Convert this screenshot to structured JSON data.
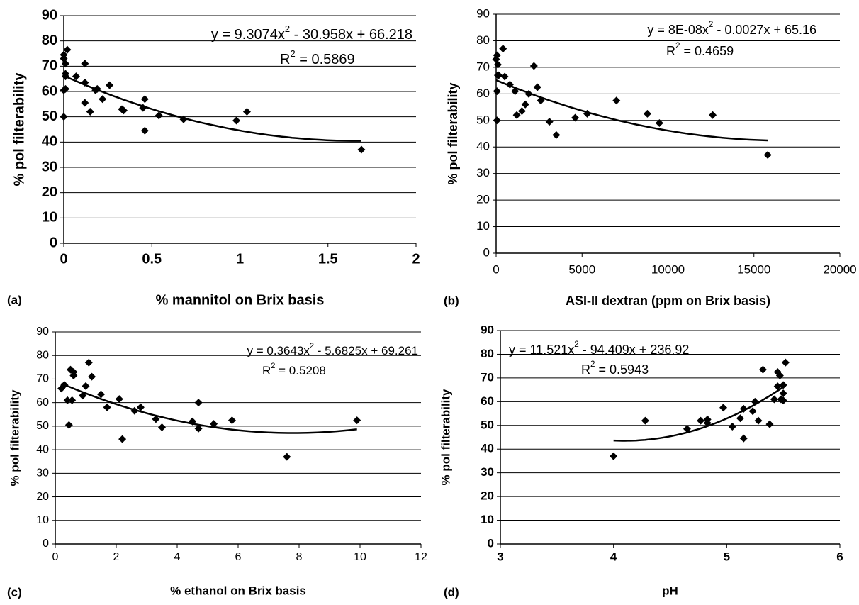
{
  "chart_data": [
    {
      "type": "scatter",
      "panel_label": "(a)",
      "x_label": "% mannitol on Brix basis",
      "y_label": "% pol filterability",
      "x": [
        0,
        0,
        0.01,
        0.02,
        0.01,
        0.01,
        0,
        0.01,
        0,
        0.07,
        0.12,
        0.12,
        0.12,
        0.15,
        0.18,
        0.19,
        0.22,
        0.26,
        0.33,
        0.34,
        0.45,
        0.46,
        0.46,
        0.54,
        0.68,
        0.98,
        1.04,
        1.69
      ],
      "values": [
        73,
        74.5,
        71,
        76.5,
        67,
        66,
        60.5,
        61,
        50,
        66,
        71,
        63.5,
        55.5,
        52,
        60.5,
        61,
        57,
        62.5,
        53,
        52.5,
        53.5,
        57,
        44.5,
        50.5,
        49,
        48.5,
        52,
        37
      ],
      "color": "#000000",
      "xlim": [
        0,
        2
      ],
      "ylim": [
        0,
        90
      ],
      "xticks": [
        0,
        0.5,
        1,
        1.5,
        2
      ],
      "yticks": [
        0,
        10,
        20,
        30,
        40,
        50,
        60,
        70,
        80,
        90
      ],
      "grid": true,
      "trendline": {
        "coefficients": [
          9.3074,
          -30.958,
          66.218
        ],
        "xlim": [
          0,
          1.69
        ]
      },
      "equation": [
        "y = 9.3074x",
        "2",
        " - 30.958x + 66.218"
      ],
      "r_squared": [
        "R",
        "2",
        " = 0.5869"
      ]
    },
    {
      "type": "scatter",
      "panel_label": "(b)",
      "x_label": "ASI-II dextran (ppm on Brix basis)",
      "y_label": "% pol filterability",
      "x": [
        0,
        50,
        100,
        100,
        150,
        50,
        50,
        400,
        500,
        800,
        1100,
        1200,
        1500,
        1700,
        1900,
        2200,
        2400,
        2600,
        3100,
        3500,
        4600,
        5300,
        7000,
        8800,
        9500,
        12600,
        15800
      ],
      "values": [
        73,
        74.5,
        71,
        67,
        67,
        61,
        50,
        77,
        66.5,
        63.5,
        61,
        52,
        53.5,
        56,
        60,
        70.5,
        62.5,
        57.5,
        49.5,
        44.5,
        51,
        52.5,
        57.5,
        52.5,
        49,
        52,
        37
      ],
      "color": "#000000",
      "xlim": [
        0,
        20000
      ],
      "ylim": [
        0,
        90
      ],
      "xticks": [
        0,
        5000,
        10000,
        15000,
        20000
      ],
      "yticks": [
        0,
        10,
        20,
        30,
        40,
        50,
        60,
        70,
        80,
        90
      ],
      "grid": true,
      "trendline": {
        "coefficients": [
          8e-08,
          -0.0027,
          65.16
        ],
        "xlim": [
          0,
          15800
        ]
      },
      "equation": [
        "y = 8E-08x",
        "2",
        " - 0.0027x + 65.16"
      ],
      "r_squared": [
        "R",
        "2",
        " = 0.4659"
      ]
    },
    {
      "type": "scatter",
      "panel_label": "(c)",
      "x_label": "% ethanol on Brix basis",
      "y_label": "% pol filterability",
      "x": [
        0.2,
        0.3,
        0.4,
        0.45,
        0.5,
        0.55,
        0.6,
        0.6,
        0.9,
        1.0,
        1.1,
        1.2,
        1.5,
        1.7,
        2.1,
        2.2,
        2.6,
        2.8,
        3.3,
        3.5,
        4.5,
        4.7,
        4.7,
        5.2,
        5.8,
        7.6,
        9.9
      ],
      "values": [
        66,
        67.5,
        61,
        50.5,
        74,
        61,
        71.5,
        73,
        63,
        67,
        77,
        71,
        63.5,
        58,
        61.5,
        44.5,
        56.5,
        58,
        53,
        49.5,
        52,
        49,
        60,
        51,
        52.5,
        37,
        52.5
      ],
      "color": "#000000",
      "xlim": [
        0,
        12
      ],
      "ylim": [
        0,
        90
      ],
      "xticks": [
        0,
        2,
        4,
        6,
        8,
        10,
        12
      ],
      "yticks": [
        0,
        10,
        20,
        30,
        40,
        50,
        60,
        70,
        80,
        90
      ],
      "grid": true,
      "trendline": {
        "coefficients": [
          0.3643,
          -5.6825,
          69.261
        ],
        "xlim": [
          0.2,
          9.9
        ]
      },
      "equation": [
        "y = 0.3643x",
        "2",
        " - 5.6825x + 69.261"
      ],
      "r_squared": [
        "R",
        "2",
        " = 0.5208"
      ]
    },
    {
      "type": "scatter",
      "panel_label": "(d)",
      "x_label": "pH",
      "y_label": "% pol filterability",
      "x": [
        4.0,
        4.28,
        4.65,
        4.77,
        4.83,
        4.83,
        4.97,
        5.05,
        5.12,
        5.15,
        5.15,
        5.23,
        5.25,
        5.28,
        5.32,
        5.38,
        5.42,
        5.45,
        5.45,
        5.47,
        5.48,
        5.5,
        5.5,
        5.5,
        5.52
      ],
      "values": [
        37,
        52,
        48.5,
        52,
        51,
        52.5,
        57.5,
        49.5,
        53,
        44.5,
        57,
        56,
        60,
        52,
        73.5,
        50.5,
        61,
        72.5,
        66.5,
        71,
        61,
        60.5,
        67,
        63.5,
        76.5
      ],
      "color": "#000000",
      "xlim": [
        3,
        6
      ],
      "ylim": [
        0,
        90
      ],
      "xticks": [
        3,
        4,
        5,
        6
      ],
      "yticks": [
        0,
        10,
        20,
        30,
        40,
        50,
        60,
        70,
        80,
        90
      ],
      "grid": true,
      "trendline": {
        "coefficients": [
          11.521,
          -94.409,
          236.92
        ],
        "xlim": [
          4.0,
          5.52
        ]
      },
      "equation": [
        "y = 11.521x",
        "2",
        " - 94.409x + 236.92"
      ],
      "r_squared": [
        "R",
        "2",
        " = 0.5943"
      ]
    }
  ]
}
